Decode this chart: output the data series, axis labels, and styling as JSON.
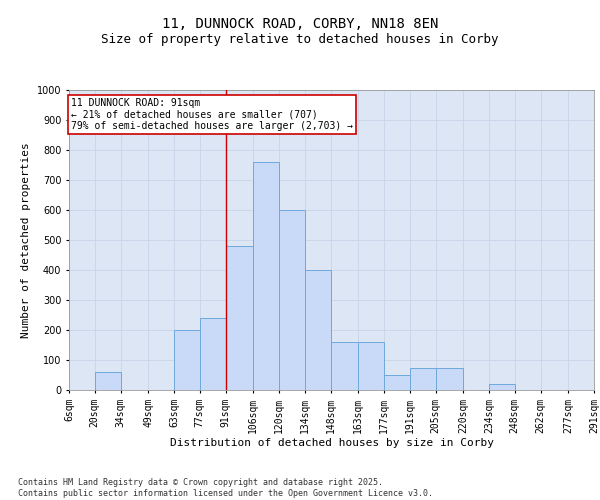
{
  "title_line1": "11, DUNNOCK ROAD, CORBY, NN18 8EN",
  "title_line2": "Size of property relative to detached houses in Corby",
  "xlabel": "Distribution of detached houses by size in Corby",
  "ylabel": "Number of detached properties",
  "bins": [
    "6sqm",
    "20sqm",
    "34sqm",
    "49sqm",
    "63sqm",
    "77sqm",
    "91sqm",
    "106sqm",
    "120sqm",
    "134sqm",
    "148sqm",
    "163sqm",
    "177sqm",
    "191sqm",
    "205sqm",
    "220sqm",
    "234sqm",
    "248sqm",
    "262sqm",
    "277sqm",
    "291sqm"
  ],
  "bin_edges": [
    6,
    20,
    34,
    49,
    63,
    77,
    91,
    106,
    120,
    134,
    148,
    163,
    177,
    191,
    205,
    220,
    234,
    248,
    262,
    277,
    291
  ],
  "bar_heights": [
    0,
    60,
    0,
    0,
    200,
    240,
    480,
    760,
    600,
    400,
    160,
    160,
    50,
    75,
    75,
    0,
    20,
    0,
    0,
    0,
    0
  ],
  "bar_color": "#c9daf8",
  "bar_edge_color": "#6fa8dc",
  "property_size": 91,
  "property_line_color": "#cc0000",
  "annotation_line1": "11 DUNNOCK ROAD: 91sqm",
  "annotation_line2": "← 21% of detached houses are smaller (707)",
  "annotation_line3": "79% of semi-detached houses are larger (2,703) →",
  "annotation_box_color": "#ffffff",
  "annotation_border_color": "#cc0000",
  "ylim": [
    0,
    1000
  ],
  "yticks": [
    0,
    100,
    200,
    300,
    400,
    500,
    600,
    700,
    800,
    900,
    1000
  ],
  "grid_color": "#c8d4e8",
  "background_color": "#dce6f5",
  "footer_line1": "Contains HM Land Registry data © Crown copyright and database right 2025.",
  "footer_line2": "Contains public sector information licensed under the Open Government Licence v3.0.",
  "title_fontsize": 10,
  "subtitle_fontsize": 9,
  "axis_label_fontsize": 8,
  "tick_fontsize": 7,
  "annotation_fontsize": 7,
  "footer_fontsize": 6
}
